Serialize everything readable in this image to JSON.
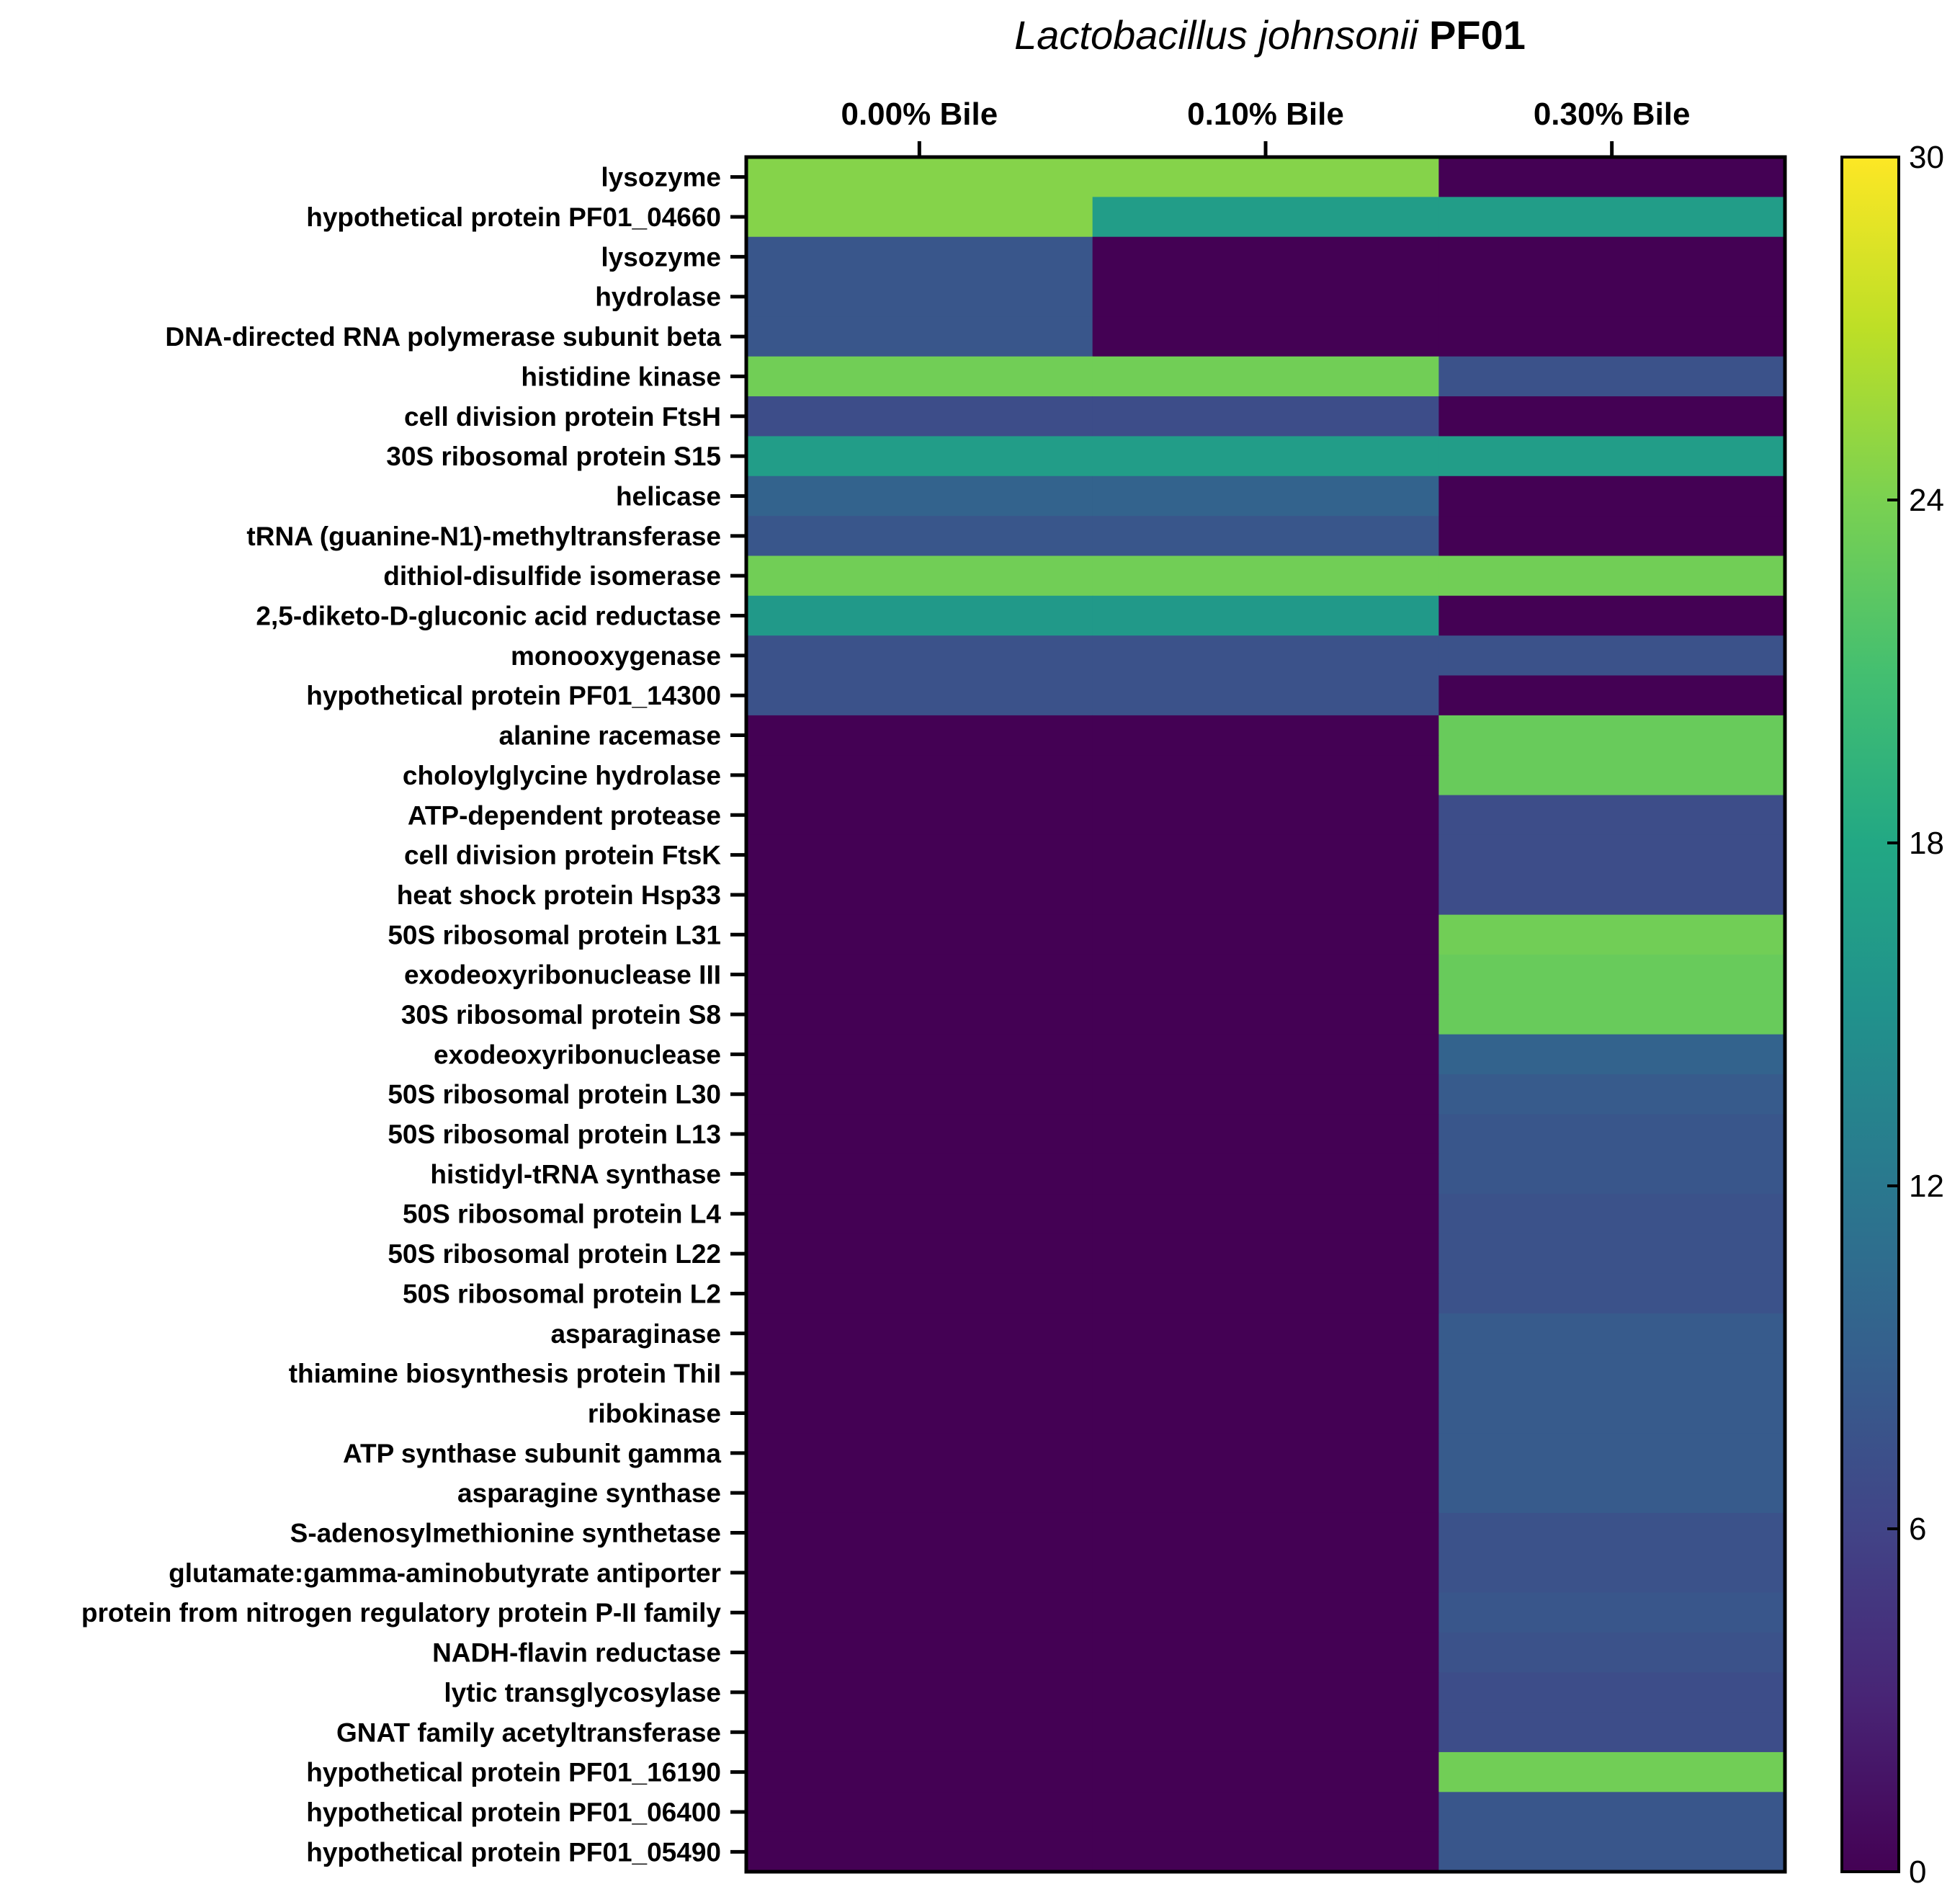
{
  "chart_data": {
    "type": "heatmap",
    "title": {
      "species": "Lactobacillus johnsonii",
      "strain": "PF01"
    },
    "columns": [
      "0.00% Bile",
      "0.10% Bile",
      "0.30% Bile"
    ],
    "rows": [
      "lysozyme",
      "hypothetical protein PF01_04660",
      "lysozyme",
      "hydrolase",
      "DNA-directed RNA polymerase subunit beta",
      "histidine kinase",
      "cell division protein FtsH",
      "30S ribosomal protein S15",
      "helicase",
      "tRNA (guanine-N1)-methyltransferase",
      "dithiol-disulfide isomerase",
      "2,5-diketo-D-gluconic acid reductase",
      "monooxygenase",
      "hypothetical protein PF01_14300",
      "alanine racemase",
      "choloylglycine hydrolase",
      "ATP-dependent protease",
      "cell division protein FtsK",
      "heat shock protein Hsp33",
      "50S ribosomal protein L31",
      "exodeoxyribonuclease III",
      "30S ribosomal protein S8",
      "exodeoxyribonuclease",
      "50S ribosomal protein L30",
      "50S ribosomal protein L13",
      "histidyl-tRNA synthase",
      "50S ribosomal protein L4",
      "50S ribosomal protein L22",
      "50S ribosomal protein L2",
      "asparaginase",
      "thiamine biosynthesis protein ThiI",
      "ribokinase",
      "ATP synthase subunit gamma",
      "asparagine synthase",
      "S-adenosylmethionine synthetase",
      "glutamate:gamma-aminobutyrate antiporter",
      "protein from nitrogen regulatory protein P-II family",
      "NADH-flavin reductase",
      "lytic transglycosylase",
      "GNAT family acetyltransferase",
      "hypothetical protein PF01_16190",
      "hypothetical protein PF01_06400",
      "hypothetical protein PF01_05490"
    ],
    "values": [
      [
        24.5,
        24.5,
        0
      ],
      [
        24.5,
        16.5,
        16.5
      ],
      [
        8,
        0,
        0
      ],
      [
        8,
        0,
        0
      ],
      [
        8,
        0,
        0
      ],
      [
        23.5,
        23.5,
        7.5
      ],
      [
        7,
        7,
        0
      ],
      [
        16.5,
        16.5,
        16.5
      ],
      [
        9.5,
        9.5,
        0
      ],
      [
        8,
        8,
        0
      ],
      [
        23.5,
        23.5,
        23.5
      ],
      [
        16,
        16,
        0
      ],
      [
        7.5,
        7.5,
        7.5
      ],
      [
        7.5,
        7.5,
        0
      ],
      [
        0,
        0,
        23
      ],
      [
        0,
        0,
        23
      ],
      [
        0,
        0,
        7
      ],
      [
        0,
        0,
        7
      ],
      [
        0,
        0,
        7
      ],
      [
        0,
        0,
        23.5
      ],
      [
        0,
        0,
        23
      ],
      [
        0,
        0,
        23
      ],
      [
        0,
        0,
        9.5
      ],
      [
        0,
        0,
        8.5
      ],
      [
        0,
        0,
        8
      ],
      [
        0,
        0,
        8
      ],
      [
        0,
        0,
        7.5
      ],
      [
        0,
        0,
        7.5
      ],
      [
        0,
        0,
        7.5
      ],
      [
        0,
        0,
        8.5
      ],
      [
        0,
        0,
        8.5
      ],
      [
        0,
        0,
        8.5
      ],
      [
        0,
        0,
        8.5
      ],
      [
        0,
        0,
        8.5
      ],
      [
        0,
        0,
        7.5
      ],
      [
        0,
        0,
        7.5
      ],
      [
        0,
        0,
        8
      ],
      [
        0,
        0,
        7.5
      ],
      [
        0,
        0,
        7
      ],
      [
        0,
        0,
        7
      ],
      [
        0,
        0,
        23.5
      ],
      [
        0,
        0,
        8
      ],
      [
        0,
        0,
        8
      ]
    ],
    "colorbar": {
      "min": 0,
      "max": 30,
      "ticks": [
        0,
        6,
        12,
        18,
        24,
        30
      ],
      "colormap": "viridis"
    }
  }
}
